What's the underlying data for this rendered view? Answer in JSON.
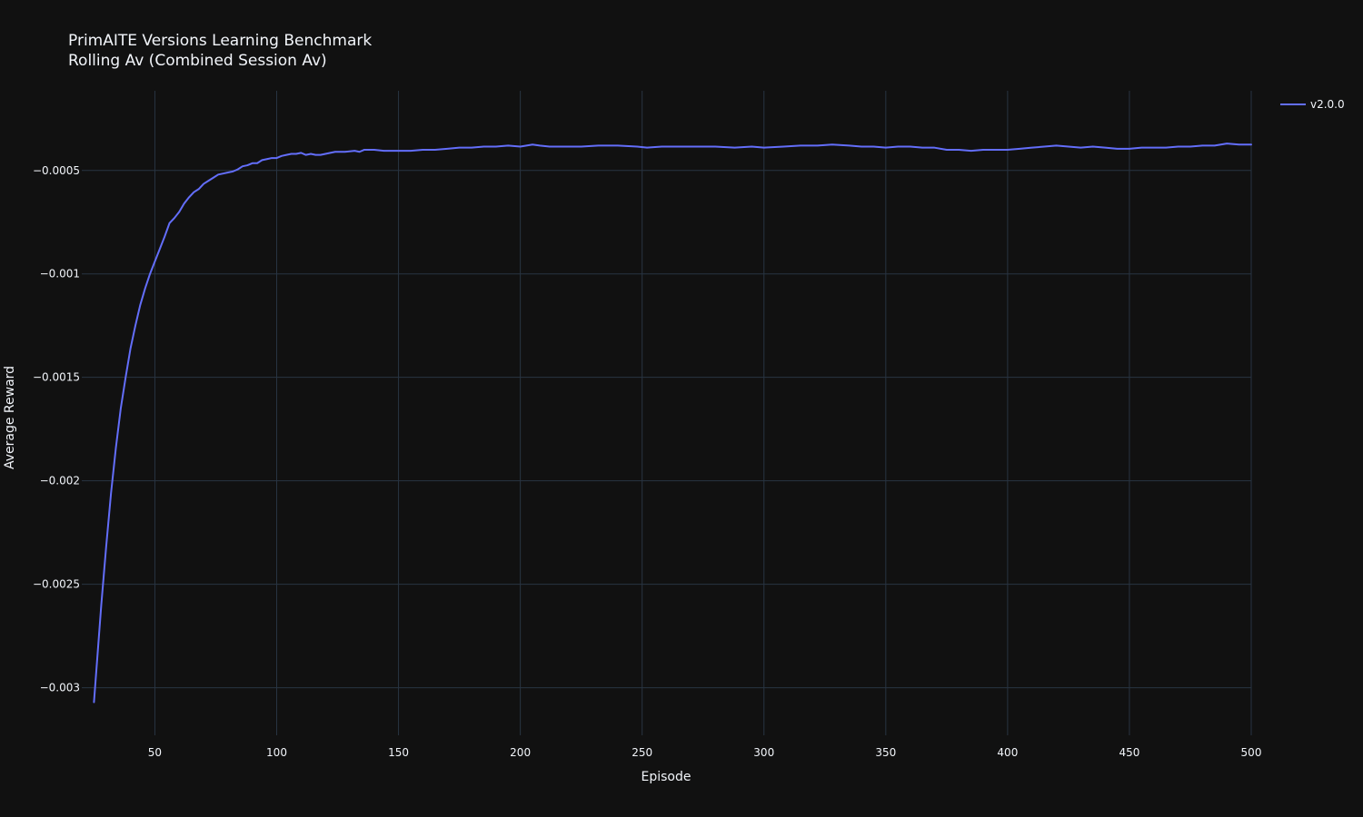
{
  "chart_data": {
    "type": "line",
    "title": "PrimAITE Versions Learning Benchmark",
    "subtitle": "Rolling Av (Combined Session Av)",
    "xlabel": "Episode",
    "ylabel": "Average Reward",
    "xlim": [
      20,
      500
    ],
    "ylim": [
      -0.00323,
      -0.000115
    ],
    "xticks": [
      50,
      100,
      150,
      200,
      250,
      300,
      350,
      400,
      450,
      500
    ],
    "yticks": [
      -0.0005,
      -0.001,
      -0.0015,
      -0.002,
      -0.0025,
      -0.003
    ],
    "ytick_labels": [
      "−0.0005",
      "−0.001",
      "−0.0015",
      "−0.002",
      "−0.0025",
      "−0.003"
    ],
    "grid": true,
    "legend_position": "top-right",
    "series": [
      {
        "name": "v2.0.0",
        "color": "#636efa",
        "points": [
          [
            25,
            -0.00307
          ],
          [
            28,
            -0.0026
          ],
          [
            30,
            -0.00232
          ],
          [
            32,
            -0.00206
          ],
          [
            34,
            -0.00184
          ],
          [
            36,
            -0.00165
          ],
          [
            38,
            -0.0015
          ],
          [
            40,
            -0.00136
          ],
          [
            42,
            -0.00125
          ],
          [
            44,
            -0.00115
          ],
          [
            46,
            -0.00107
          ],
          [
            48,
            -0.001
          ],
          [
            50,
            -0.00094
          ],
          [
            52,
            -0.00088
          ],
          [
            54,
            -0.00082
          ],
          [
            56,
            -0.000755
          ],
          [
            58,
            -0.00073
          ],
          [
            60,
            -0.0007
          ],
          [
            62,
            -0.00066
          ],
          [
            64,
            -0.00063
          ],
          [
            66,
            -0.000605
          ],
          [
            68,
            -0.00059
          ],
          [
            70,
            -0.000565
          ],
          [
            72,
            -0.00055
          ],
          [
            74,
            -0.000535
          ],
          [
            76,
            -0.00052
          ],
          [
            78,
            -0.000515
          ],
          [
            80,
            -0.00051
          ],
          [
            82,
            -0.000505
          ],
          [
            84,
            -0.000495
          ],
          [
            86,
            -0.00048
          ],
          [
            88,
            -0.000475
          ],
          [
            90,
            -0.000465
          ],
          [
            92,
            -0.000465
          ],
          [
            94,
            -0.00045
          ],
          [
            96,
            -0.000445
          ],
          [
            98,
            -0.00044
          ],
          [
            100,
            -0.00044
          ],
          [
            102,
            -0.00043
          ],
          [
            104,
            -0.000425
          ],
          [
            106,
            -0.00042
          ],
          [
            108,
            -0.00042
          ],
          [
            110,
            -0.000415
          ],
          [
            112,
            -0.000425
          ],
          [
            114,
            -0.00042
          ],
          [
            116,
            -0.000425
          ],
          [
            118,
            -0.000425
          ],
          [
            120,
            -0.00042
          ],
          [
            124,
            -0.00041
          ],
          [
            128,
            -0.00041
          ],
          [
            132,
            -0.000405
          ],
          [
            134,
            -0.00041
          ],
          [
            136,
            -0.0004
          ],
          [
            140,
            -0.0004
          ],
          [
            144,
            -0.000405
          ],
          [
            150,
            -0.000405
          ],
          [
            155,
            -0.000405
          ],
          [
            160,
            -0.0004
          ],
          [
            165,
            -0.0004
          ],
          [
            170,
            -0.000395
          ],
          [
            175,
            -0.00039
          ],
          [
            180,
            -0.00039
          ],
          [
            185,
            -0.000385
          ],
          [
            190,
            -0.000385
          ],
          [
            195,
            -0.00038
          ],
          [
            200,
            -0.000385
          ],
          [
            205,
            -0.000375
          ],
          [
            208,
            -0.00038
          ],
          [
            212,
            -0.000385
          ],
          [
            218,
            -0.000385
          ],
          [
            225,
            -0.000385
          ],
          [
            232,
            -0.00038
          ],
          [
            240,
            -0.00038
          ],
          [
            248,
            -0.000385
          ],
          [
            252,
            -0.00039
          ],
          [
            258,
            -0.000385
          ],
          [
            265,
            -0.000385
          ],
          [
            272,
            -0.000385
          ],
          [
            280,
            -0.000385
          ],
          [
            288,
            -0.00039
          ],
          [
            295,
            -0.000385
          ],
          [
            300,
            -0.00039
          ],
          [
            308,
            -0.000385
          ],
          [
            315,
            -0.00038
          ],
          [
            322,
            -0.00038
          ],
          [
            328,
            -0.000375
          ],
          [
            335,
            -0.00038
          ],
          [
            340,
            -0.000385
          ],
          [
            345,
            -0.000385
          ],
          [
            350,
            -0.00039
          ],
          [
            355,
            -0.000385
          ],
          [
            360,
            -0.000385
          ],
          [
            365,
            -0.00039
          ],
          [
            370,
            -0.00039
          ],
          [
            375,
            -0.0004
          ],
          [
            380,
            -0.0004
          ],
          [
            385,
            -0.000405
          ],
          [
            390,
            -0.0004
          ],
          [
            395,
            -0.0004
          ],
          [
            400,
            -0.0004
          ],
          [
            405,
            -0.000395
          ],
          [
            410,
            -0.00039
          ],
          [
            415,
            -0.000385
          ],
          [
            420,
            -0.00038
          ],
          [
            425,
            -0.000385
          ],
          [
            430,
            -0.00039
          ],
          [
            435,
            -0.000385
          ],
          [
            440,
            -0.00039
          ],
          [
            445,
            -0.000395
          ],
          [
            450,
            -0.000395
          ],
          [
            455,
            -0.00039
          ],
          [
            460,
            -0.00039
          ],
          [
            465,
            -0.00039
          ],
          [
            470,
            -0.000385
          ],
          [
            475,
            -0.000385
          ],
          [
            480,
            -0.00038
          ],
          [
            485,
            -0.00038
          ],
          [
            490,
            -0.00037
          ],
          [
            495,
            -0.000375
          ],
          [
            500,
            -0.000375
          ]
        ]
      }
    ]
  }
}
